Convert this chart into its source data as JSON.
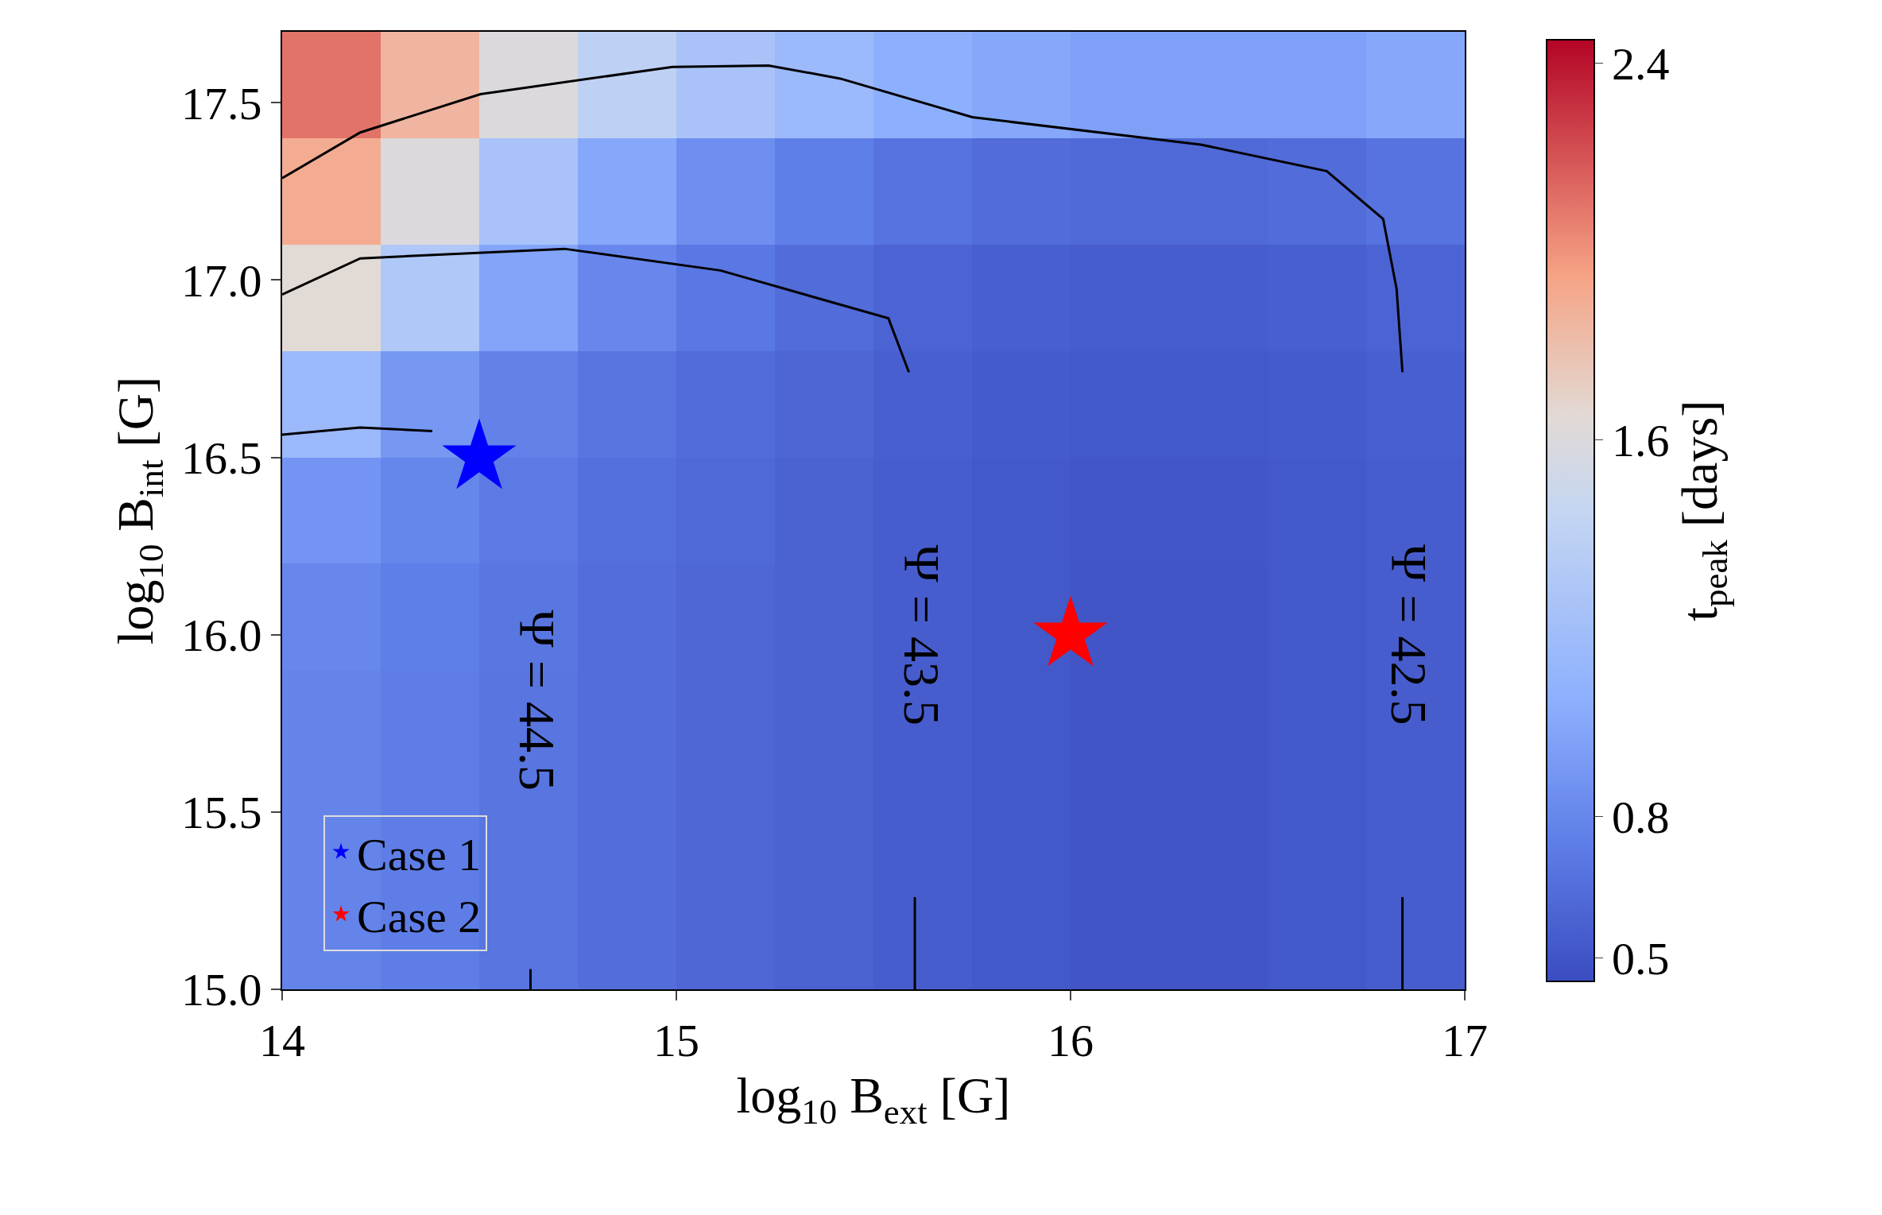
{
  "chart_data": {
    "type": "heatmap",
    "xlabel": "log$_{10}$ B$_{ext}$ [G]",
    "ylabel": "log$_{10}$ B$_{int}$ [G]",
    "clabel": "t$_{peak}$ [days]",
    "x": [
      14.125,
      14.375,
      14.625,
      14.875,
      15.125,
      15.375,
      15.625,
      15.875,
      16.125,
      16.375,
      16.625,
      16.875
    ],
    "y": [
      17.55,
      17.25,
      16.95,
      16.65,
      16.35,
      16.05,
      15.75,
      15.45,
      15.15
    ],
    "cells": [
      [
        2.1,
        1.85,
        1.6,
        1.4,
        1.25,
        1.15,
        1.05,
        1.0,
        0.95,
        0.95,
        0.95,
        1.0
      ],
      [
        1.9,
        1.6,
        1.25,
        1.0,
        0.85,
        0.75,
        0.68,
        0.64,
        0.62,
        0.62,
        0.64,
        0.68
      ],
      [
        1.65,
        1.3,
        0.98,
        0.8,
        0.71,
        0.64,
        0.59,
        0.56,
        0.55,
        0.55,
        0.56,
        0.59
      ],
      [
        1.15,
        0.9,
        0.77,
        0.69,
        0.64,
        0.6,
        0.56,
        0.53,
        0.52,
        0.52,
        0.53,
        0.56
      ],
      [
        0.88,
        0.79,
        0.72,
        0.66,
        0.62,
        0.58,
        0.55,
        0.52,
        0.51,
        0.51,
        0.52,
        0.55
      ],
      [
        0.8,
        0.75,
        0.7,
        0.65,
        0.61,
        0.58,
        0.55,
        0.52,
        0.5,
        0.5,
        0.52,
        0.55
      ],
      [
        0.78,
        0.74,
        0.69,
        0.65,
        0.61,
        0.58,
        0.55,
        0.52,
        0.5,
        0.5,
        0.52,
        0.55
      ],
      [
        0.78,
        0.74,
        0.69,
        0.65,
        0.61,
        0.58,
        0.55,
        0.52,
        0.5,
        0.5,
        0.52,
        0.55
      ],
      [
        0.78,
        0.74,
        0.69,
        0.65,
        0.61,
        0.58,
        0.55,
        0.52,
        0.5,
        0.5,
        0.52,
        0.55
      ]
    ],
    "clim": [
      0.45,
      2.45
    ],
    "cticks": [
      0.5,
      0.8,
      1.6,
      2.4
    ],
    "xlim": [
      14,
      17
    ],
    "xticks": [
      14,
      15,
      16,
      17
    ],
    "ylim": [
      15.0,
      17.7
    ],
    "yticks": [
      {
        "value": 15.0,
        "label": "15.0"
      },
      {
        "value": 15.5,
        "label": "15.5"
      },
      {
        "value": 16.0,
        "label": "16.0"
      },
      {
        "value": 16.5,
        "label": "16.5"
      },
      {
        "value": 17.0,
        "label": "17.0"
      },
      {
        "value": 17.5,
        "label": "17.5"
      }
    ],
    "series": [
      {
        "type": "line",
        "color": "#000000",
        "x": [
          14.0,
          14.198,
          14.503,
          14.99,
          15.234,
          15.416,
          15.751,
          16.33,
          16.65,
          16.793,
          16.827,
          16.842,
          null,
          16.842,
          16.842
        ],
        "values": [
          17.287,
          17.416,
          17.524,
          17.601,
          17.605,
          17.568,
          17.459,
          17.382,
          17.307,
          17.172,
          16.976,
          16.74,
          null,
          15.26,
          15.0
        ]
      },
      {
        "type": "line",
        "color": "#000000",
        "x": [
          14.0,
          14.198,
          14.716,
          15.112,
          15.538,
          15.59,
          null,
          15.605,
          15.605
        ],
        "values": [
          16.959,
          17.061,
          17.088,
          17.027,
          16.892,
          16.74,
          null,
          15.26,
          15.0
        ]
      },
      {
        "type": "line",
        "color": "#000000",
        "x": [
          14.0,
          14.198,
          14.381,
          null,
          14.63,
          14.63
        ],
        "values": [
          16.564,
          16.584,
          16.574,
          null,
          15.057,
          15.0
        ]
      },
      {
        "type": "scatter",
        "marker": "star",
        "name": "Case 1",
        "color": "#0000ff",
        "x": [
          14.5
        ],
        "values": [
          16.5
        ]
      },
      {
        "type": "scatter",
        "marker": "star",
        "name": "Case 2",
        "color": "#ff0000",
        "x": [
          16.0
        ],
        "values": [
          16.0
        ]
      }
    ],
    "annotations": [
      "Ψ = 42.5",
      "Ψ = 43.5",
      "Ψ = 44.5"
    ],
    "legend": "bottom left"
  }
}
